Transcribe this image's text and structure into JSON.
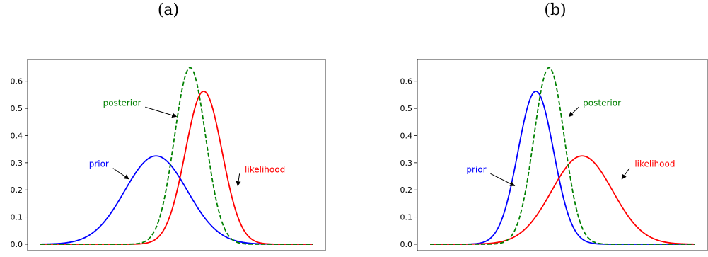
{
  "chart_data": [
    {
      "type": "line",
      "panel_label": "(a)",
      "xlim": [
        0,
        20
      ],
      "ylim": [
        0,
        0.68
      ],
      "yticks": [
        "0.0",
        "0.1",
        "0.2",
        "0.3",
        "0.4",
        "0.5",
        "0.6"
      ],
      "x_ticks_shown": false,
      "series": [
        {
          "name": "prior",
          "color": "#0000ff",
          "style": "solid",
          "peak_x": 8.5,
          "peak_y": 0.325,
          "sigma": 2.3
        },
        {
          "name": "likelihood",
          "color": "#ff0000",
          "style": "solid",
          "peak_x": 12.0,
          "peak_y": 0.563,
          "sigma": 1.35
        },
        {
          "name": "posterior",
          "color": "#008000",
          "style": "dashed",
          "peak_x": 11.0,
          "peak_y": 0.65,
          "sigma": 1.15
        }
      ],
      "annotations": [
        {
          "text": "posterior",
          "color": "#008000",
          "text_x": 6.0,
          "text_y": 0.51,
          "arrow_to": [
            10.0,
            0.47
          ]
        },
        {
          "text": "prior",
          "color": "#0000ff",
          "text_x": 4.3,
          "text_y": 0.285,
          "arrow_to": [
            6.5,
            0.24
          ]
        },
        {
          "text": "likelihood",
          "color": "#ff0000",
          "text_x": 16.5,
          "text_y": 0.265,
          "arrow_to": [
            14.5,
            0.215
          ]
        }
      ]
    },
    {
      "type": "line",
      "panel_label": "(b)",
      "xlim": [
        0,
        20
      ],
      "ylim": [
        0,
        0.68
      ],
      "yticks": [
        "0.0",
        "0.1",
        "0.2",
        "0.3",
        "0.4",
        "0.5",
        "0.6"
      ],
      "x_ticks_shown": false,
      "series": [
        {
          "name": "prior",
          "color": "#0000ff",
          "style": "solid",
          "peak_x": 8.0,
          "peak_y": 0.563,
          "sigma": 1.35
        },
        {
          "name": "likelihood",
          "color": "#ff0000",
          "style": "solid",
          "peak_x": 11.5,
          "peak_y": 0.325,
          "sigma": 2.3
        },
        {
          "name": "posterior",
          "color": "#008000",
          "style": "dashed",
          "peak_x": 9.0,
          "peak_y": 0.65,
          "sigma": 1.15
        }
      ],
      "annotations": [
        {
          "text": "posterior",
          "color": "#008000",
          "text_x": 13.0,
          "text_y": 0.51,
          "arrow_to": [
            10.5,
            0.47
          ]
        },
        {
          "text": "prior",
          "color": "#0000ff",
          "text_x": 3.5,
          "text_y": 0.265,
          "arrow_to": [
            6.4,
            0.215
          ]
        },
        {
          "text": "likelihood",
          "color": "#ff0000",
          "text_x": 17.0,
          "text_y": 0.285,
          "arrow_to": [
            14.5,
            0.24
          ]
        }
      ]
    }
  ]
}
